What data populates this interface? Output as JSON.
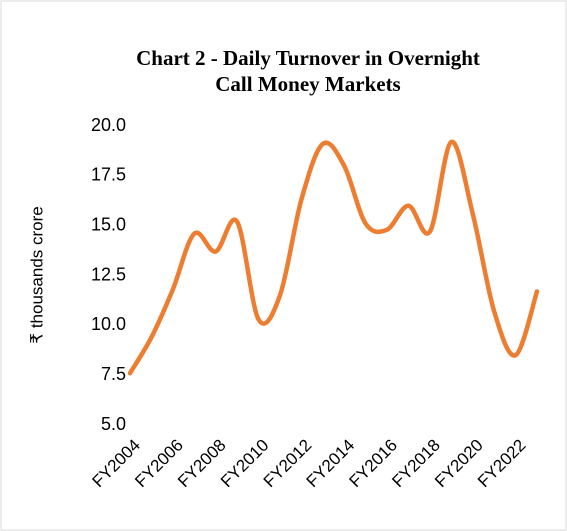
{
  "chart_data": {
    "type": "line",
    "title": [
      "Chart 2 - Daily Turnover in Overnight",
      "Call Money Markets"
    ],
    "y_label": "₹ thousands crore",
    "categories": [
      "FY2004",
      null,
      "FY2006",
      null,
      "FY2008",
      null,
      "FY2010",
      null,
      "FY2012",
      null,
      "FY2014",
      null,
      "FY2016",
      null,
      "FY2018",
      null,
      "FY2020",
      null,
      "FY2022",
      null
    ],
    "series": [
      {
        "name": "Daily Turnover",
        "color": "#ed7d31",
        "values": [
          7.6,
          9.4,
          11.8,
          14.6,
          13.7,
          15.2,
          10.3,
          11.5,
          16.3,
          19.1,
          18.0,
          15.1,
          14.8,
          16.0,
          14.7,
          19.2,
          15.6,
          10.7,
          8.5,
          11.7
        ]
      }
    ],
    "ylim": [
      5,
      20
    ],
    "yticks": [
      {
        "value": 5,
        "label": "5.0"
      },
      7.5,
      {
        "value": 10,
        "label": "10.0"
      },
      12.5,
      {
        "value": 15,
        "label": "15.0"
      },
      17.5,
      {
        "value": 20,
        "label": "20.0"
      }
    ],
    "grid": false,
    "legend": false
  }
}
